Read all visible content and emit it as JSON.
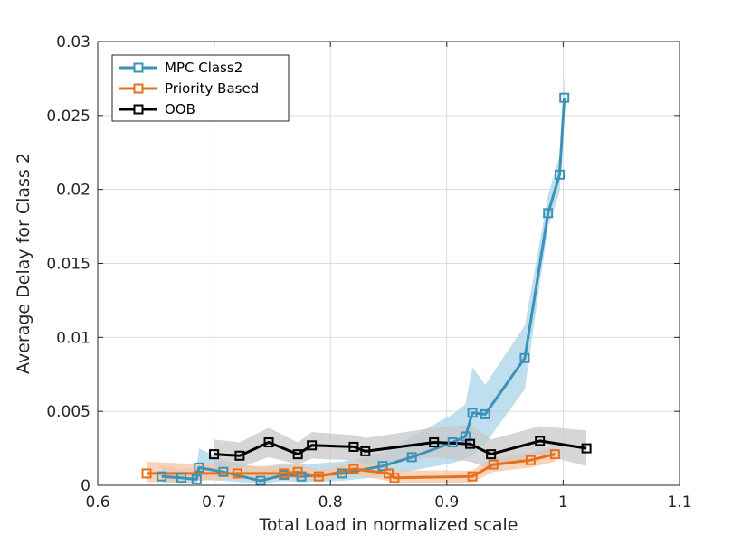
{
  "chart_data": {
    "type": "line",
    "title": "",
    "xlabel": "Total Load in normalized scale",
    "ylabel": "Average Delay for Class 2",
    "xlim": [
      0.6,
      1.1
    ],
    "ylim": [
      0,
      0.03
    ],
    "xticks": [
      0.6,
      0.7,
      0.8,
      0.9,
      1.0,
      1.1
    ],
    "xtick_labels": [
      "0.6",
      "0.7",
      "0.8",
      "0.9",
      "1",
      "1.1"
    ],
    "yticks": [
      0,
      0.005,
      0.01,
      0.015,
      0.02,
      0.025,
      0.03
    ],
    "ytick_labels": [
      "0",
      "0.005",
      "0.01",
      "0.015",
      "0.02",
      "0.025",
      "0.03"
    ],
    "grid": true,
    "legend_position": "top-left",
    "series": [
      {
        "name": "MPC Class2",
        "color": "#3a92b8",
        "band_color": "#a9d4e8",
        "marker": "square",
        "x": [
          0.655,
          0.672,
          0.685,
          0.687,
          0.708,
          0.74,
          0.76,
          0.775,
          0.81,
          0.845,
          0.87,
          0.905,
          0.916,
          0.922,
          0.933,
          0.967,
          0.987,
          0.997,
          1.001
        ],
        "y": [
          0.0006,
          0.0005,
          0.0004,
          0.0012,
          0.0009,
          0.0003,
          0.0007,
          0.0006,
          0.0008,
          0.0013,
          0.0019,
          0.0029,
          0.0033,
          0.0049,
          0.0048,
          0.0086,
          0.0184,
          0.021,
          0.0262
        ],
        "band_lower": [
          0.0002,
          0.0001,
          0.0001,
          0.0004,
          0.0003,
          0.0001,
          0.0003,
          0.0002,
          0.0003,
          0.0006,
          0.001,
          0.0015,
          0.0018,
          0.002,
          0.0028,
          0.0065,
          0.0175,
          0.0198,
          0.0248
        ],
        "band_upper": [
          0.0013,
          0.0011,
          0.0012,
          0.0025,
          0.0017,
          0.0012,
          0.0015,
          0.0014,
          0.0016,
          0.0022,
          0.0033,
          0.0048,
          0.0055,
          0.008,
          0.0068,
          0.0108,
          0.0196,
          0.0223,
          0.0278
        ]
      },
      {
        "name": "Priority Based",
        "color": "#e8701a",
        "band_color": "#f6c6a3",
        "marker": "square",
        "x": [
          0.642,
          0.72,
          0.76,
          0.772,
          0.79,
          0.82,
          0.85,
          0.855,
          0.922,
          0.94,
          0.972,
          0.993
        ],
        "y": [
          0.0008,
          0.0008,
          0.0008,
          0.0009,
          0.0006,
          0.0011,
          0.0008,
          0.0005,
          0.0006,
          0.0014,
          0.0017,
          0.0021
        ],
        "band_lower": [
          0.0002,
          0.0004,
          0.0004,
          0.0005,
          0.0003,
          0.0007,
          0.0003,
          0.0001,
          0.0002,
          0.0009,
          0.0012,
          0.0016
        ],
        "band_upper": [
          0.0016,
          0.0013,
          0.0013,
          0.0014,
          0.001,
          0.0016,
          0.0013,
          0.001,
          0.001,
          0.0019,
          0.0022,
          0.0026
        ]
      },
      {
        "name": "OOB",
        "color": "#000000",
        "band_color": "#c8c8c8",
        "marker": "square",
        "x": [
          0.7,
          0.722,
          0.747,
          0.772,
          0.784,
          0.82,
          0.83,
          0.889,
          0.92,
          0.938,
          0.98,
          1.02
        ],
        "y": [
          0.0021,
          0.002,
          0.0029,
          0.0021,
          0.0027,
          0.0026,
          0.0023,
          0.0029,
          0.0028,
          0.0021,
          0.003,
          0.0025
        ],
        "band_lower": [
          0.0011,
          0.0012,
          0.0019,
          0.0014,
          0.0018,
          0.0017,
          0.0014,
          0.0019,
          0.0016,
          0.0011,
          0.0021,
          0.0013
        ],
        "band_upper": [
          0.0031,
          0.0029,
          0.0039,
          0.0029,
          0.0036,
          0.0034,
          0.0032,
          0.0039,
          0.0041,
          0.0031,
          0.004,
          0.0037
        ]
      }
    ]
  }
}
